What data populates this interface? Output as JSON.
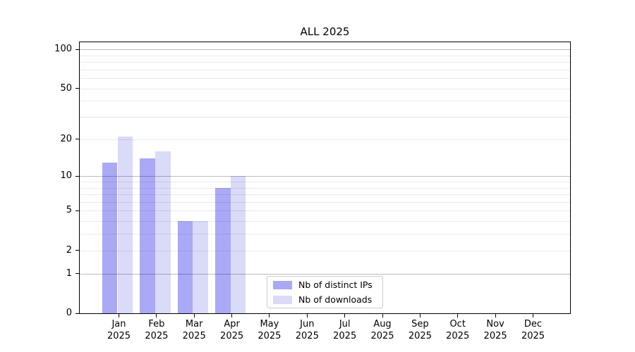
{
  "chart_data": {
    "type": "bar",
    "title": "ALL 2025",
    "categories": [
      "Jan",
      "Feb",
      "Mar",
      "Apr",
      "May",
      "Jun",
      "Jul",
      "Aug",
      "Sep",
      "Oct",
      "Nov",
      "Dec"
    ],
    "year_label": "2025",
    "series": [
      {
        "name": "Nb of distinct IPs",
        "color": "#a9a9f6",
        "values": [
          13,
          14,
          4,
          8,
          0,
          0,
          0,
          0,
          0,
          0,
          0,
          0
        ]
      },
      {
        "name": "Nb of downloads",
        "color": "#dadaf9",
        "values": [
          21,
          16,
          4,
          10,
          0,
          0,
          0,
          0,
          0,
          0,
          0,
          0
        ]
      }
    ],
    "y_axis": {
      "scale": "log10(1+x)",
      "tick_labels": [
        0,
        1,
        2,
        5,
        10,
        20,
        50,
        100
      ],
      "major_gridlines": [
        1,
        10,
        100
      ],
      "minor_gridlines": [
        2,
        3,
        4,
        5,
        6,
        7,
        8,
        9,
        20,
        30,
        40,
        50,
        60,
        70,
        80,
        90
      ],
      "ylim": [
        0,
        113
      ]
    },
    "legend": {
      "position": "lower center"
    },
    "grid": true
  },
  "colors": {
    "bar_distinct_ips": "#a9a9f6",
    "bar_downloads": "#dadaf9",
    "grid_major": "#bcbcbc",
    "grid_minor": "#e9e9e9",
    "axis": "#000000",
    "legend_border": "#cccccc",
    "background": "#ffffff"
  }
}
